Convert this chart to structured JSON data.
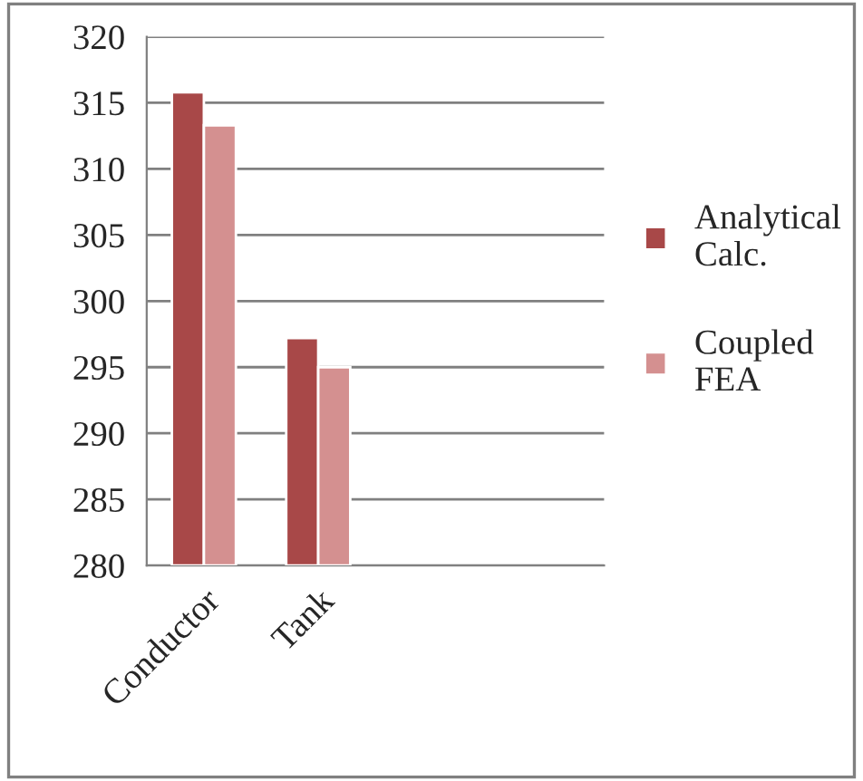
{
  "chart_data": {
    "type": "bar",
    "categories": [
      "Conductor",
      "Tank",
      null,
      null
    ],
    "series": [
      {
        "name": "Analytical\nCalc.",
        "color": "#a84848",
        "values": [
          315.8,
          297.2,
          null,
          null
        ]
      },
      {
        "name": "Coupled\nFEA",
        "color": "#d49090",
        "values": [
          313.3,
          295.0,
          null,
          null
        ]
      }
    ],
    "ylim": [
      280,
      320
    ],
    "yticks": [
      280,
      285,
      290,
      295,
      300,
      305,
      310,
      315,
      320
    ],
    "grid": "y",
    "legend": "right"
  }
}
